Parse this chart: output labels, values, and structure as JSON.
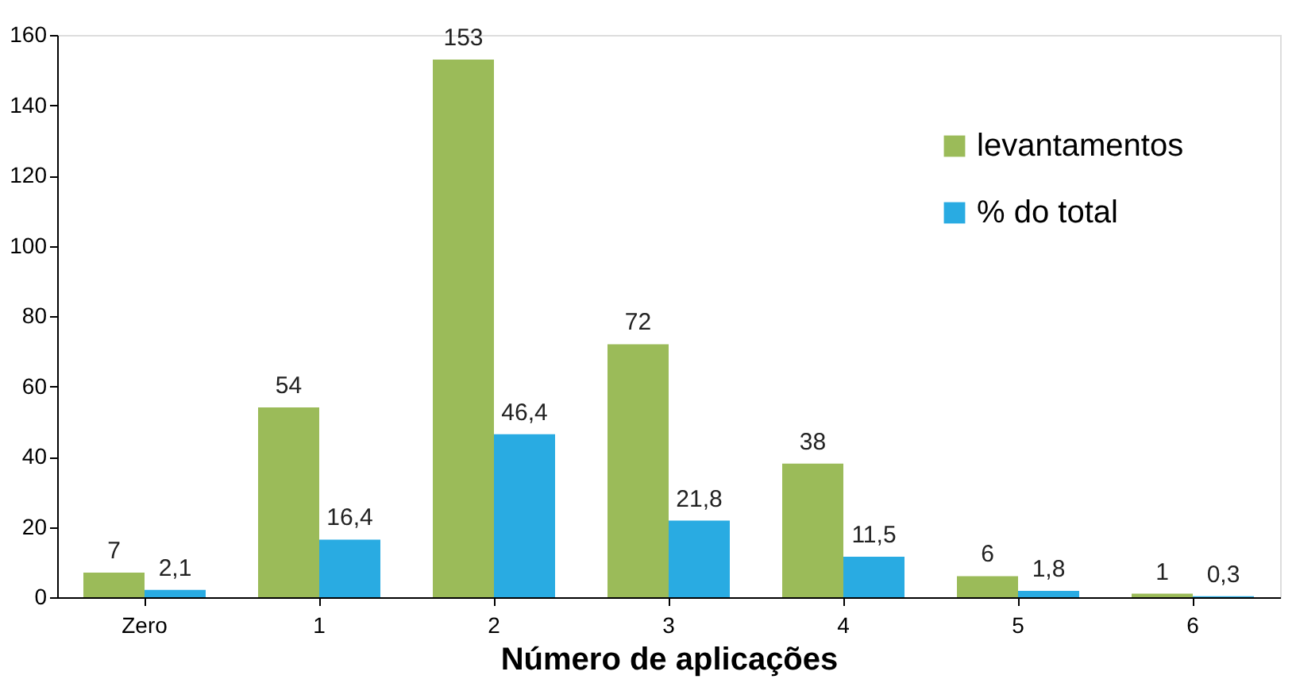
{
  "chart_data": {
    "type": "bar",
    "xlabel": "Número de aplicações",
    "categories": [
      "Zero",
      "1",
      "2",
      "3",
      "4",
      "5",
      "6"
    ],
    "series": [
      {
        "name": "levantamentos",
        "color": "#9bbb59",
        "values": [
          7,
          54,
          153,
          72,
          38,
          6,
          1
        ],
        "value_labels": [
          "7",
          "54",
          "153",
          "72",
          "38",
          "6",
          "1"
        ]
      },
      {
        "name": "% do total",
        "color": "#29abe2",
        "values": [
          2.1,
          16.4,
          46.4,
          21.8,
          11.5,
          1.8,
          0.3
        ],
        "value_labels": [
          "2,1",
          "16,4",
          "46,4",
          "21,8",
          "11,5",
          "1,8",
          "0,3"
        ]
      }
    ],
    "ylim": [
      0,
      160
    ],
    "yticks": [
      0,
      20,
      40,
      60,
      80,
      100,
      120,
      140,
      160
    ],
    "grid": false,
    "legend": "top right"
  }
}
